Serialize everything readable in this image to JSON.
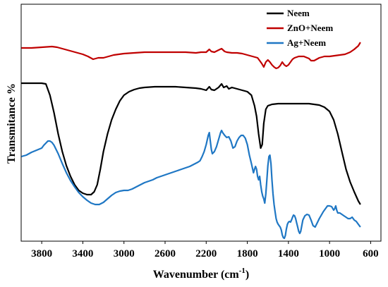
{
  "chart_data": {
    "type": "line",
    "title": "",
    "xlabel": "Wavenumber (cm",
    "xlabel_superscript": "-1",
    "xlabel_suffix": ")",
    "ylabel": "Transmitance %",
    "xlim": [
      4000,
      500
    ],
    "x_reversed": true,
    "y_ticks_shown": false,
    "grid": false,
    "legend_position": "top-right",
    "x_ticks": [
      "3800",
      "3400",
      "3000",
      "2600",
      "2200",
      "1800",
      "1400",
      "1000",
      "600"
    ],
    "series": [
      {
        "name": "Neem",
        "color": "#000000",
        "points": [
          [
            3998,
            118
          ],
          [
            3900,
            118
          ],
          [
            3800,
            118
          ],
          [
            3760,
            119
          ],
          [
            3720,
            135
          ],
          [
            3680,
            160
          ],
          [
            3640,
            190
          ],
          [
            3600,
            215
          ],
          [
            3560,
            235
          ],
          [
            3520,
            250
          ],
          [
            3480,
            262
          ],
          [
            3440,
            270
          ],
          [
            3400,
            274
          ],
          [
            3360,
            276
          ],
          [
            3320,
            276
          ],
          [
            3290,
            272
          ],
          [
            3260,
            262
          ],
          [
            3230,
            240
          ],
          [
            3200,
            215
          ],
          [
            3160,
            190
          ],
          [
            3120,
            170
          ],
          [
            3080,
            155
          ],
          [
            3040,
            143
          ],
          [
            3000,
            135
          ],
          [
            2950,
            130
          ],
          [
            2900,
            127
          ],
          [
            2850,
            125
          ],
          [
            2800,
            124
          ],
          [
            2700,
            123
          ],
          [
            2600,
            123
          ],
          [
            2500,
            123
          ],
          [
            2400,
            124
          ],
          [
            2300,
            125
          ],
          [
            2250,
            126
          ],
          [
            2200,
            128
          ],
          [
            2170,
            123
          ],
          [
            2150,
            127
          ],
          [
            2120,
            128
          ],
          [
            2080,
            124
          ],
          [
            2050,
            119
          ],
          [
            2030,
            124
          ],
          [
            2000,
            122
          ],
          [
            1980,
            126
          ],
          [
            1950,
            124
          ],
          [
            1900,
            126
          ],
          [
            1850,
            128
          ],
          [
            1800,
            130
          ],
          [
            1760,
            135
          ],
          [
            1730,
            150
          ],
          [
            1710,
            165
          ],
          [
            1690,
            190
          ],
          [
            1670,
            210
          ],
          [
            1655,
            205
          ],
          [
            1640,
            175
          ],
          [
            1620,
            155
          ],
          [
            1600,
            150
          ],
          [
            1560,
            148
          ],
          [
            1500,
            147
          ],
          [
            1400,
            147
          ],
          [
            1300,
            147
          ],
          [
            1200,
            147
          ],
          [
            1100,
            149
          ],
          [
            1050,
            152
          ],
          [
            1000,
            158
          ],
          [
            960,
            170
          ],
          [
            920,
            190
          ],
          [
            880,
            215
          ],
          [
            840,
            240
          ],
          [
            800,
            258
          ],
          [
            760,
            272
          ],
          [
            720,
            285
          ],
          [
            700,
            290
          ]
        ]
      },
      {
        "name": "ZnO+Neem",
        "color": "#c00000",
        "points": [
          [
            3998,
            68
          ],
          [
            3900,
            68
          ],
          [
            3800,
            67
          ],
          [
            3700,
            66
          ],
          [
            3650,
            67
          ],
          [
            3600,
            69
          ],
          [
            3550,
            71
          ],
          [
            3500,
            73
          ],
          [
            3450,
            75
          ],
          [
            3400,
            77
          ],
          [
            3350,
            80
          ],
          [
            3300,
            84
          ],
          [
            3250,
            82
          ],
          [
            3200,
            82
          ],
          [
            3150,
            80
          ],
          [
            3100,
            78
          ],
          [
            3000,
            76
          ],
          [
            2900,
            75
          ],
          [
            2800,
            74
          ],
          [
            2700,
            74
          ],
          [
            2600,
            74
          ],
          [
            2500,
            74
          ],
          [
            2400,
            74
          ],
          [
            2300,
            75
          ],
          [
            2250,
            74
          ],
          [
            2200,
            74
          ],
          [
            2170,
            70
          ],
          [
            2150,
            73
          ],
          [
            2120,
            74
          ],
          [
            2080,
            71
          ],
          [
            2050,
            69
          ],
          [
            2020,
            73
          ],
          [
            2000,
            74
          ],
          [
            1950,
            75
          ],
          [
            1900,
            75
          ],
          [
            1850,
            76
          ],
          [
            1800,
            78
          ],
          [
            1750,
            80
          ],
          [
            1700,
            82
          ],
          [
            1680,
            86
          ],
          [
            1660,
            90
          ],
          [
            1640,
            95
          ],
          [
            1620,
            88
          ],
          [
            1600,
            85
          ],
          [
            1580,
            88
          ],
          [
            1560,
            92
          ],
          [
            1540,
            95
          ],
          [
            1520,
            97
          ],
          [
            1500,
            96
          ],
          [
            1480,
            93
          ],
          [
            1460,
            88
          ],
          [
            1440,
            92
          ],
          [
            1420,
            94
          ],
          [
            1400,
            92
          ],
          [
            1380,
            88
          ],
          [
            1360,
            84
          ],
          [
            1340,
            82
          ],
          [
            1300,
            80
          ],
          [
            1250,
            80
          ],
          [
            1200,
            83
          ],
          [
            1180,
            86
          ],
          [
            1150,
            86
          ],
          [
            1100,
            82
          ],
          [
            1050,
            80
          ],
          [
            1000,
            80
          ],
          [
            950,
            79
          ],
          [
            900,
            78
          ],
          [
            850,
            77
          ],
          [
            800,
            74
          ],
          [
            760,
            70
          ],
          [
            720,
            65
          ],
          [
            700,
            60
          ]
        ]
      },
      {
        "name": "Ag+Neem",
        "color": "#1f77c4",
        "points": [
          [
            3998,
            222
          ],
          [
            3950,
            220
          ],
          [
            3900,
            216
          ],
          [
            3850,
            213
          ],
          [
            3800,
            210
          ],
          [
            3780,
            206
          ],
          [
            3760,
            203
          ],
          [
            3740,
            200
          ],
          [
            3720,
            200
          ],
          [
            3700,
            202
          ],
          [
            3680,
            206
          ],
          [
            3640,
            218
          ],
          [
            3600,
            232
          ],
          [
            3560,
            245
          ],
          [
            3520,
            256
          ],
          [
            3480,
            265
          ],
          [
            3440,
            273
          ],
          [
            3400,
            279
          ],
          [
            3360,
            284
          ],
          [
            3320,
            288
          ],
          [
            3280,
            290
          ],
          [
            3240,
            290
          ],
          [
            3200,
            287
          ],
          [
            3160,
            282
          ],
          [
            3120,
            277
          ],
          [
            3080,
            273
          ],
          [
            3040,
            271
          ],
          [
            3000,
            270
          ],
          [
            2960,
            270
          ],
          [
            2920,
            268
          ],
          [
            2880,
            265
          ],
          [
            2840,
            262
          ],
          [
            2800,
            259
          ],
          [
            2760,
            257
          ],
          [
            2720,
            255
          ],
          [
            2680,
            252
          ],
          [
            2640,
            250
          ],
          [
            2600,
            248
          ],
          [
            2560,
            246
          ],
          [
            2520,
            244
          ],
          [
            2480,
            242
          ],
          [
            2440,
            240
          ],
          [
            2400,
            238
          ],
          [
            2360,
            236
          ],
          [
            2320,
            233
          ],
          [
            2280,
            230
          ],
          [
            2260,
            228
          ],
          [
            2240,
            222
          ],
          [
            2220,
            215
          ],
          [
            2200,
            205
          ],
          [
            2180,
            192
          ],
          [
            2170,
            188
          ],
          [
            2160,
            200
          ],
          [
            2150,
            212
          ],
          [
            2140,
            218
          ],
          [
            2120,
            215
          ],
          [
            2100,
            208
          ],
          [
            2080,
            198
          ],
          [
            2060,
            188
          ],
          [
            2050,
            185
          ],
          [
            2040,
            188
          ],
          [
            2020,
            192
          ],
          [
            2000,
            195
          ],
          [
            1980,
            194
          ],
          [
            1960,
            200
          ],
          [
            1940,
            210
          ],
          [
            1920,
            208
          ],
          [
            1900,
            200
          ],
          [
            1880,
            195
          ],
          [
            1860,
            192
          ],
          [
            1840,
            192
          ],
          [
            1820,
            196
          ],
          [
            1800,
            205
          ],
          [
            1780,
            220
          ],
          [
            1760,
            232
          ],
          [
            1740,
            245
          ],
          [
            1730,
            240
          ],
          [
            1720,
            236
          ],
          [
            1710,
            240
          ],
          [
            1700,
            250
          ],
          [
            1690,
            255
          ],
          [
            1680,
            250
          ],
          [
            1670,
            262
          ],
          [
            1660,
            272
          ],
          [
            1650,
            278
          ],
          [
            1640,
            282
          ],
          [
            1630,
            288
          ],
          [
            1620,
            275
          ],
          [
            1610,
            255
          ],
          [
            1600,
            235
          ],
          [
            1590,
            222
          ],
          [
            1580,
            220
          ],
          [
            1570,
            232
          ],
          [
            1560,
            255
          ],
          [
            1550,
            275
          ],
          [
            1540,
            290
          ],
          [
            1530,
            300
          ],
          [
            1520,
            310
          ],
          [
            1510,
            315
          ],
          [
            1500,
            318
          ],
          [
            1490,
            320
          ],
          [
            1480,
            322
          ],
          [
            1470,
            326
          ],
          [
            1460,
            333
          ],
          [
            1450,
            337
          ],
          [
            1440,
            338
          ],
          [
            1430,
            334
          ],
          [
            1420,
            325
          ],
          [
            1410,
            318
          ],
          [
            1400,
            315
          ],
          [
            1390,
            314
          ],
          [
            1380,
            315
          ],
          [
            1370,
            312
          ],
          [
            1360,
            308
          ],
          [
            1350,
            305
          ],
          [
            1340,
            306
          ],
          [
            1330,
            310
          ],
          [
            1320,
            316
          ],
          [
            1310,
            322
          ],
          [
            1300,
            328
          ],
          [
            1290,
            331
          ],
          [
            1280,
            328
          ],
          [
            1270,
            320
          ],
          [
            1260,
            312
          ],
          [
            1240,
            306
          ],
          [
            1220,
            304
          ],
          [
            1200,
            305
          ],
          [
            1180,
            312
          ],
          [
            1160,
            320
          ],
          [
            1140,
            322
          ],
          [
            1120,
            316
          ],
          [
            1100,
            310
          ],
          [
            1080,
            305
          ],
          [
            1060,
            300
          ],
          [
            1040,
            296
          ],
          [
            1020,
            292
          ],
          [
            1000,
            292
          ],
          [
            980,
            293
          ],
          [
            960,
            298
          ],
          [
            950,
            296
          ],
          [
            940,
            292
          ],
          [
            930,
            298
          ],
          [
            920,
            302
          ],
          [
            900,
            302
          ],
          [
            880,
            304
          ],
          [
            860,
            306
          ],
          [
            840,
            308
          ],
          [
            820,
            310
          ],
          [
            800,
            310
          ],
          [
            780,
            308
          ],
          [
            760,
            312
          ],
          [
            740,
            314
          ],
          [
            720,
            318
          ],
          [
            700,
            322
          ]
        ]
      }
    ]
  }
}
